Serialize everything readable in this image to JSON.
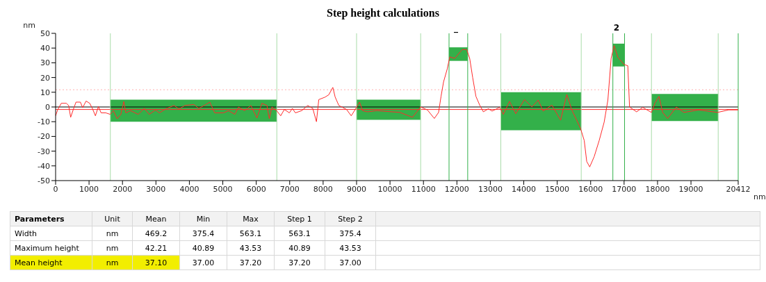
{
  "chart_data": {
    "type": "line",
    "title": "Step height calculations",
    "xlabel": "nm",
    "ylabel": "nm",
    "xlim": [
      0,
      20412
    ],
    "ylim": [
      -50,
      50
    ],
    "xticks": [
      0,
      1000,
      2000,
      3000,
      4000,
      5000,
      6000,
      7000,
      8000,
      9000,
      10000,
      11000,
      12000,
      13000,
      14000,
      15000,
      16000,
      17000,
      18000,
      19000,
      20412
    ],
    "yticks": [
      -50,
      -40,
      -30,
      -20,
      -10,
      0,
      10,
      20,
      30,
      40,
      50
    ],
    "marker": "none",
    "series": [
      {
        "color": "#ff2a2a",
        "x": [
          0,
          60,
          170,
          320,
          390,
          450,
          540,
          610,
          740,
          810,
          910,
          1020,
          1100,
          1190,
          1280,
          1360,
          1500,
          1630,
          1730,
          1840,
          1950,
          2040,
          2100,
          2240,
          2470,
          2650,
          2800,
          2990,
          3100,
          3320,
          3540,
          3690,
          3870,
          4130,
          4280,
          4500,
          4610,
          4760,
          5020,
          5170,
          5360,
          5470,
          5650,
          5840,
          6020,
          6170,
          6320,
          6390,
          6470,
          6610,
          6730,
          6840,
          6990,
          7080,
          7170,
          7360,
          7540,
          7690,
          7800,
          7870,
          8060,
          8170,
          8290,
          8360,
          8470,
          8700,
          8840,
          8960,
          9090,
          9180,
          9320,
          9610,
          10298,
          10670,
          10916,
          11117,
          11325,
          11452,
          11526,
          11601,
          11713,
          11787,
          11936,
          12159,
          12293,
          12383,
          12472,
          12569,
          12681,
          12792,
          12941,
          13053,
          13276,
          13388,
          13574,
          13760,
          14021,
          14244,
          14430,
          14579,
          14840,
          15101,
          15287,
          15436,
          15696,
          15808,
          15882,
          15972,
          16106,
          16255,
          16404,
          16515,
          16612,
          16701,
          16813,
          16999,
          17111,
          17163,
          17372,
          17558,
          17818,
          17930,
          18042,
          18153,
          18302,
          18563,
          18786,
          19233,
          19791,
          20127,
          20412
        ],
        "values": [
          -6,
          -2,
          2.5,
          2.5,
          1,
          -7,
          -1,
          3.3,
          3.3,
          -0.5,
          4,
          2.5,
          -1,
          -6,
          0.3,
          -4,
          -4,
          -5,
          -2.5,
          -8,
          -5,
          3.7,
          -4,
          -2.5,
          -5,
          -1,
          -5,
          -2,
          -4,
          -1,
          1,
          -1.3,
          1,
          1.7,
          -1,
          1.7,
          3.3,
          -4,
          -4,
          -2.5,
          -5,
          0,
          -2.5,
          1,
          -7.5,
          2.5,
          1,
          -8,
          0,
          -2.5,
          -6,
          -1.7,
          -4,
          -1,
          -4,
          -2.5,
          1,
          -1,
          -10,
          5,
          6.7,
          8.3,
          13.3,
          6.7,
          1,
          -1.7,
          -6,
          -1.7,
          3.3,
          -2.5,
          -3.3,
          -2.5,
          -3.7,
          -7,
          0,
          -2,
          -7.8,
          -3.7,
          7.2,
          17,
          26,
          34,
          33,
          39,
          39,
          33,
          20,
          7.2,
          1.3,
          -3.3,
          -1.2,
          -2.8,
          -0.3,
          -5,
          3.8,
          -4.5,
          5,
          0,
          4.7,
          -2.8,
          1.3,
          -9,
          8.5,
          -2,
          -14.5,
          -22.8,
          -37,
          -40.7,
          -33.7,
          -22.8,
          -10.3,
          4.7,
          33,
          41.7,
          33.8,
          28.8,
          28,
          0,
          -3.3,
          -0.3,
          -3.7,
          3,
          7.2,
          -3.7,
          -7.8,
          0,
          -3.7,
          -2,
          -3.7,
          -2,
          -2
        ]
      },
      {
        "type": "area",
        "color": "#33b04a",
        "x": [
          1637,
          6615
        ],
        "values": [
          null,
          null
        ],
        "lower": [
          -10,
          -10
        ],
        "upper": [
          5,
          5
        ]
      },
      {
        "type": "area",
        "color": "#33b04a",
        "x": [
          9000,
          10916
        ],
        "values": [
          null,
          null
        ],
        "lower": [
          -8.7,
          -8.7
        ],
        "upper": [
          5,
          5
        ]
      },
      {
        "type": "area",
        "color": "#33b04a",
        "x": [
          11765,
          12323
        ],
        "values": [
          null,
          null
        ],
        "lower": [
          31.3,
          31.3
        ],
        "upper": [
          40.5,
          40.5
        ]
      },
      {
        "type": "area",
        "color": "#33b04a",
        "x": [
          13313,
          15718
        ],
        "values": [
          null,
          null
        ],
        "lower": [
          -15.8,
          -15.8
        ],
        "upper": [
          10,
          10
        ]
      },
      {
        "type": "area",
        "color": "#33b04a",
        "x": [
          16664,
          17014
        ],
        "values": [
          null,
          null
        ],
        "lower": [
          27.5,
          27.5
        ],
        "upper": [
          43,
          43
        ]
      },
      {
        "type": "area",
        "color": "#33b04a",
        "x": [
          17818,
          19814
        ],
        "values": [
          null,
          null
        ],
        "lower": [
          -9.5,
          -9.5
        ],
        "upper": [
          8.8,
          8.8
        ]
      }
    ],
    "ref_lines": [
      {
        "axis": "y",
        "value": 0,
        "color": "#000000",
        "line_style": "solid"
      },
      {
        "axis": "y",
        "value": -1.7,
        "color": "#ff2a2a",
        "line_style": "solid"
      },
      {
        "axis": "y",
        "value": 11.7,
        "color": "#ffb0b0",
        "line_style": "dotted"
      },
      {
        "axis": "x",
        "value": 1637,
        "color": "#a8dca8",
        "line_style": "solid"
      },
      {
        "axis": "x",
        "value": 6615,
        "color": "#a8dca8",
        "line_style": "solid"
      },
      {
        "axis": "x",
        "value": 9000,
        "color": "#a8dca8",
        "line_style": "solid"
      },
      {
        "axis": "x",
        "value": 10916,
        "color": "#a8dca8",
        "line_style": "solid"
      },
      {
        "axis": "x",
        "value": 11765,
        "color": "#33b04a",
        "line_style": "solid"
      },
      {
        "axis": "x",
        "value": 12323,
        "color": "#33b04a",
        "line_style": "solid"
      },
      {
        "axis": "x",
        "value": 13313,
        "color": "#a8dca8",
        "line_style": "solid"
      },
      {
        "axis": "x",
        "value": 15718,
        "color": "#a8dca8",
        "line_style": "solid"
      },
      {
        "axis": "x",
        "value": 16664,
        "color": "#33b04a",
        "line_style": "solid"
      },
      {
        "axis": "x",
        "value": 17014,
        "color": "#33b04a",
        "line_style": "solid"
      },
      {
        "axis": "x",
        "value": 17818,
        "color": "#a8dca8",
        "line_style": "solid"
      },
      {
        "axis": "x",
        "value": 19814,
        "color": "#a8dca8",
        "line_style": "solid"
      },
      {
        "axis": "x",
        "value": 20412,
        "color": "#33b04a",
        "line_style": "solid"
      }
    ],
    "annotations": [
      "_",
      "2",
      "Parameters",
      "Unit",
      "Mean",
      "Min",
      "Max",
      "Step 1",
      "Step 2",
      "Width",
      "nm",
      "469.2",
      "375.4",
      "563.1",
      "563.1",
      "375.4",
      "Maximum height",
      "nm",
      "42.21",
      "40.89",
      "43.53",
      "40.89",
      "43.53",
      "Mean height",
      "nm",
      "37.10",
      "37.00",
      "37.20",
      "37.20",
      "37.00"
    ]
  }
}
